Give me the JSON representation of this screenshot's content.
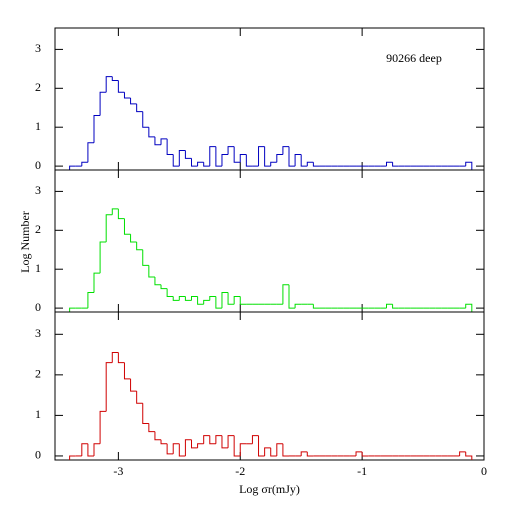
{
  "chart_data": [
    {
      "type": "histogram",
      "annotation": "90266 deep",
      "color": "#0000c0",
      "bins": [
        -3.4,
        -3.35,
        -3.3,
        -3.25,
        -3.2,
        -3.15,
        -3.1,
        -3.05,
        -3.0,
        -2.95,
        -2.9,
        -2.85,
        -2.8,
        -2.75,
        -2.7,
        -2.65,
        -2.6,
        -2.55,
        -2.5,
        -2.45,
        -2.4,
        -2.35,
        -2.3,
        -2.25,
        -2.2,
        -2.15,
        -2.1,
        -2.05,
        -2.0,
        -1.95,
        -1.9,
        -1.85,
        -1.8,
        -1.75,
        -1.7,
        -1.65,
        -1.6,
        -1.55,
        -1.5,
        -1.45,
        -1.4,
        -1.35,
        -1.3,
        -1.25,
        -1.2,
        -1.15,
        -1.1,
        -1.05,
        -1.0,
        -0.95,
        -0.9,
        -0.85,
        -0.8,
        -0.75,
        -0.7,
        -0.65,
        -0.6,
        -0.55,
        -0.5,
        -0.45,
        -0.4,
        -0.35,
        -0.3,
        -0.25,
        -0.2,
        -0.15,
        -0.1
      ],
      "values": [
        0,
        0,
        0.1,
        0.6,
        1.3,
        1.9,
        2.3,
        2.2,
        1.9,
        1.75,
        1.6,
        1.4,
        1.0,
        0.75,
        0.55,
        0.7,
        0.3,
        0,
        0.4,
        0.2,
        0,
        0.1,
        0,
        0.5,
        0,
        0.3,
        0.5,
        0.1,
        0.3,
        0,
        0,
        0.5,
        0,
        0.1,
        0.3,
        0.5,
        0,
        0.3,
        0,
        0.1,
        0,
        0,
        0,
        0,
        0,
        0,
        0,
        0,
        0,
        0,
        0,
        0,
        0.1,
        0,
        0,
        0,
        0,
        0,
        0,
        0,
        0,
        0,
        0,
        0,
        0,
        0.1
      ],
      "xlim": [
        -3.52,
        0
      ],
      "xticks": [
        -3,
        -2,
        -1,
        0
      ],
      "ylim": [
        -0.1,
        3.55
      ],
      "yticks": [
        0,
        1,
        2,
        3
      ]
    },
    {
      "type": "histogram",
      "ylabel": "Log Number",
      "color": "#00e000",
      "bins": [
        -3.4,
        -3.35,
        -3.3,
        -3.25,
        -3.2,
        -3.15,
        -3.1,
        -3.05,
        -3.0,
        -2.95,
        -2.9,
        -2.85,
        -2.8,
        -2.75,
        -2.7,
        -2.65,
        -2.6,
        -2.55,
        -2.5,
        -2.45,
        -2.4,
        -2.35,
        -2.3,
        -2.25,
        -2.2,
        -2.15,
        -2.1,
        -2.05,
        -2.0,
        -1.95,
        -1.9,
        -1.85,
        -1.8,
        -1.75,
        -1.7,
        -1.65,
        -1.6,
        -1.55,
        -1.5,
        -1.45,
        -1.4,
        -1.35,
        -1.3,
        -1.25,
        -1.2,
        -1.15,
        -1.1,
        -1.05,
        -1.0,
        -0.95,
        -0.9,
        -0.85,
        -0.8,
        -0.75,
        -0.7,
        -0.65,
        -0.6,
        -0.55,
        -0.5,
        -0.45,
        -0.4,
        -0.35,
        -0.3,
        -0.25,
        -0.2,
        -0.15,
        -0.1
      ],
      "values": [
        0,
        0,
        0,
        0.4,
        0.9,
        1.7,
        2.4,
        2.55,
        2.3,
        1.9,
        1.7,
        1.5,
        1.1,
        0.8,
        0.6,
        0.5,
        0.3,
        0.2,
        0.3,
        0.2,
        0.3,
        0.1,
        0.2,
        0.3,
        0,
        0.4,
        0.1,
        0.3,
        0.1,
        0.1,
        0.1,
        0.1,
        0.1,
        0.1,
        0.1,
        0.6,
        0,
        0.1,
        0.1,
        0.1,
        0,
        0,
        0,
        0,
        0,
        0,
        0,
        0,
        0,
        0,
        0,
        0,
        0.1,
        0,
        0,
        0,
        0,
        0,
        0,
        0,
        0,
        0,
        0,
        0,
        0,
        0.1
      ],
      "xlim": [
        -3.52,
        0
      ],
      "xticks": [
        -3,
        -2,
        -1,
        0
      ],
      "ylim": [
        -0.1,
        3.55
      ],
      "yticks": [
        0,
        1,
        2,
        3
      ]
    },
    {
      "type": "histogram",
      "xlabel": "Log σr(mJy)",
      "color": "#d00000",
      "bins": [
        -3.4,
        -3.35,
        -3.3,
        -3.25,
        -3.2,
        -3.15,
        -3.1,
        -3.05,
        -3.0,
        -2.95,
        -2.9,
        -2.85,
        -2.8,
        -2.75,
        -2.7,
        -2.65,
        -2.6,
        -2.55,
        -2.5,
        -2.45,
        -2.4,
        -2.35,
        -2.3,
        -2.25,
        -2.2,
        -2.15,
        -2.1,
        -2.05,
        -2.0,
        -1.95,
        -1.9,
        -1.85,
        -1.8,
        -1.75,
        -1.7,
        -1.65,
        -1.6,
        -1.55,
        -1.5,
        -1.45,
        -1.4,
        -1.35,
        -1.3,
        -1.25,
        -1.2,
        -1.15,
        -1.1,
        -1.05,
        -1.0,
        -0.95,
        -0.9,
        -0.85,
        -0.8,
        -0.75,
        -0.7,
        -0.65,
        -0.6,
        -0.55,
        -0.5,
        -0.45,
        -0.4,
        -0.35,
        -0.3,
        -0.25,
        -0.2,
        -0.15,
        -0.1
      ],
      "values": [
        0,
        0,
        0.3,
        0,
        0.3,
        1.1,
        2.3,
        2.55,
        2.3,
        1.9,
        1.6,
        1.3,
        0.8,
        0.6,
        0.4,
        0.3,
        0.05,
        0.3,
        0,
        0.4,
        0.2,
        0.3,
        0.5,
        0.3,
        0.5,
        0.2,
        0.5,
        0,
        0.3,
        0.3,
        0.5,
        0,
        0.2,
        0,
        0.3,
        0,
        0,
        0,
        0.1,
        0,
        0,
        0,
        0,
        0,
        0,
        0,
        0,
        0.1,
        0,
        0,
        0,
        0,
        0,
        0,
        0,
        0,
        0,
        0,
        0,
        0,
        0,
        0,
        0,
        0,
        0.1,
        0
      ],
      "xlim": [
        -3.52,
        0
      ],
      "xticks": [
        -3,
        -2,
        -1,
        0
      ],
      "ylim": [
        -0.1,
        3.55
      ],
      "yticks": [
        0,
        1,
        2,
        3
      ]
    }
  ]
}
